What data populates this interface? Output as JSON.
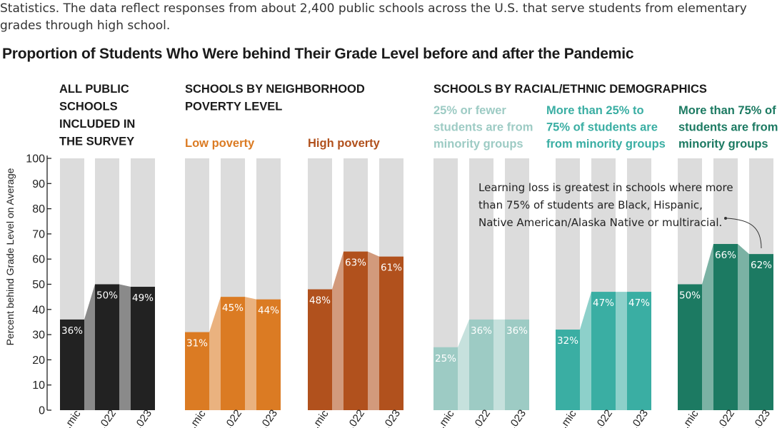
{
  "intro": {
    "line1": "Statistics. The data reflect responses from about 2,400 public schools across the U.S. that serve students from elementary",
    "line2": "grades through high school."
  },
  "chart_data": {
    "type": "bar",
    "title": "Proportion of Students Who Were behind Their Grade Level before and after the Pandemic",
    "ylabel": "Percent behind Grade Level on Average",
    "ylim": [
      0,
      100
    ],
    "yticks": [
      0,
      10,
      20,
      30,
      40,
      50,
      60,
      70,
      80,
      90,
      100
    ],
    "categories": [
      "...mic",
      "...022",
      "...023"
    ],
    "groups": [
      {
        "title": [
          "ALL PUBLIC",
          "SCHOOLS",
          "INCLUDED IN",
          "THE SURVEY"
        ],
        "series": [
          {
            "name": "",
            "color": "#222222",
            "values": [
              36,
              50,
              49
            ],
            "labels": [
              "36%",
              "50%",
              "49%"
            ]
          }
        ]
      },
      {
        "title": [
          "SCHOOLS BY NEIGHBORHOOD",
          "POVERTY LEVEL"
        ],
        "series": [
          {
            "name": [
              "Low poverty"
            ],
            "color": "#db7b23",
            "values": [
              31,
              45,
              44
            ],
            "labels": [
              "31%",
              "45%",
              "44%"
            ]
          },
          {
            "name": [
              "High poverty"
            ],
            "color": "#b1511d",
            "values": [
              48,
              63,
              61
            ],
            "labels": [
              "48%",
              "63%",
              "61%"
            ]
          }
        ]
      },
      {
        "title": [
          "SCHOOLS BY RACIAL/ETHNIC DEMOGRAPHICS"
        ],
        "series": [
          {
            "name": [
              "25% or fewer",
              "students are from",
              "minority groups"
            ],
            "color": "#9dcbc4",
            "values": [
              25,
              36,
              36
            ],
            "labels": [
              "25%",
              "36%",
              "36%"
            ]
          },
          {
            "name": [
              "More than 25% to",
              "75% of students are",
              "from minority groups"
            ],
            "color": "#3aaea3",
            "values": [
              32,
              47,
              47
            ],
            "labels": [
              "32%",
              "47%",
              "47%"
            ]
          },
          {
            "name": [
              "More than 75% of",
              "students are from",
              "minority groups"
            ],
            "color": "#1c7a62",
            "values": [
              50,
              66,
              62
            ],
            "labels": [
              "50%",
              "66%",
              "62%"
            ]
          }
        ]
      }
    ],
    "annotation": [
      "Learning loss is greatest in schools where more",
      "than 75% of students are Black, Hispanic,",
      "Native American/Alaska Native or multiracial."
    ]
  }
}
